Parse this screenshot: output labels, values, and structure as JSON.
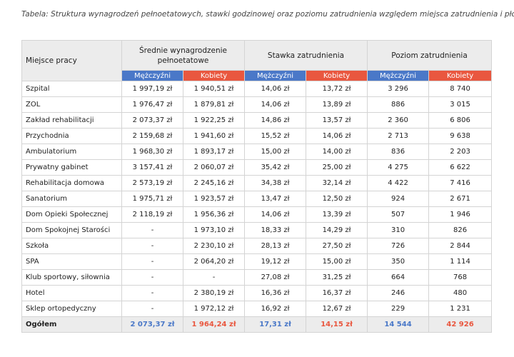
{
  "caption": "Tabela: Struktura wynagrodzeń pełnoetatowych, stawki godzinowej oraz poziomu zatrudnienia względem miejsca zatrudnienia i płci.",
  "table": {
    "corner": "Miejsce pracy",
    "groups": [
      "Średnie wynagrodzenie pełnoetatowe",
      "Stawka zatrudnienia",
      "Poziom zatrudnienia"
    ],
    "subheaders": [
      "Mężczyźni",
      "Kobiety",
      "Mężczyźni",
      "Kobiety",
      "Mężczyźni",
      "Kobiety"
    ],
    "rows": [
      [
        "Szpital",
        "1 997,19 zł",
        "1 940,51 zł",
        "14,06 zł",
        "13,72 zł",
        "3 296",
        "8 740"
      ],
      [
        "ZOL",
        "1 976,47 zł",
        "1 879,81 zł",
        "14,06 zł",
        "13,89 zł",
        "886",
        "3 015"
      ],
      [
        "Zakład rehabilitacji",
        "2 073,37 zł",
        "1 922,25 zł",
        "14,86 zł",
        "13,57 zł",
        "2 360",
        "6 806"
      ],
      [
        "Przychodnia",
        "2 159,68 zł",
        "1 941,60 zł",
        "15,52 zł",
        "14,06 zł",
        "2 713",
        "9 638"
      ],
      [
        "Ambulatorium",
        "1 968,30 zł",
        "1 893,17 zł",
        "15,00 zł",
        "14,00 zł",
        "836",
        "2 203"
      ],
      [
        "Prywatny gabinet",
        "3 157,41 zł",
        "2 060,07 zł",
        "35,42 zł",
        "25,00 zł",
        "4 275",
        "6 622"
      ],
      [
        "Rehabilitacja domowa",
        "2 573,19 zł",
        "2 245,16 zł",
        "34,38 zł",
        "32,14 zł",
        "4 422",
        "7 416"
      ],
      [
        "Sanatorium",
        "1 975,71 zł",
        "1 923,57 zł",
        "13,47 zł",
        "12,50 zł",
        "924",
        "2 671"
      ],
      [
        "Dom Opieki Społecznej",
        "2 118,19 zł",
        "1 956,36 zł",
        "14,06 zł",
        "13,39 zł",
        "507",
        "1 946"
      ],
      [
        "Dom Spokojnej Starości",
        "-",
        "1 973,10 zł",
        "18,33 zł",
        "14,29 zł",
        "310",
        "826"
      ],
      [
        "Szkoła",
        "-",
        "2 230,10 zł",
        "28,13 zł",
        "27,50 zł",
        "726",
        "2 844"
      ],
      [
        "SPA",
        "-",
        "2 064,20 zł",
        "19,12 zł",
        "15,00 zł",
        "350",
        "1 114"
      ],
      [
        "Klub sportowy, siłownia",
        "-",
        "-",
        "27,08 zł",
        "31,25 zł",
        "664",
        "768"
      ],
      [
        "Hotel",
        "-",
        "2 380,19 zł",
        "16,36 zł",
        "16,37 zł",
        "246",
        "480"
      ],
      [
        "Sklep ortopedyczny",
        "-",
        "1 972,12 zł",
        "16,92 zł",
        "12,67 zł",
        "229",
        "1 231"
      ]
    ],
    "total": [
      "Ogółem",
      "2 073,37 zł",
      "1 964,24 zł",
      "17,31 zł",
      "14,15 zł",
      "14 544",
      "42 926"
    ]
  }
}
